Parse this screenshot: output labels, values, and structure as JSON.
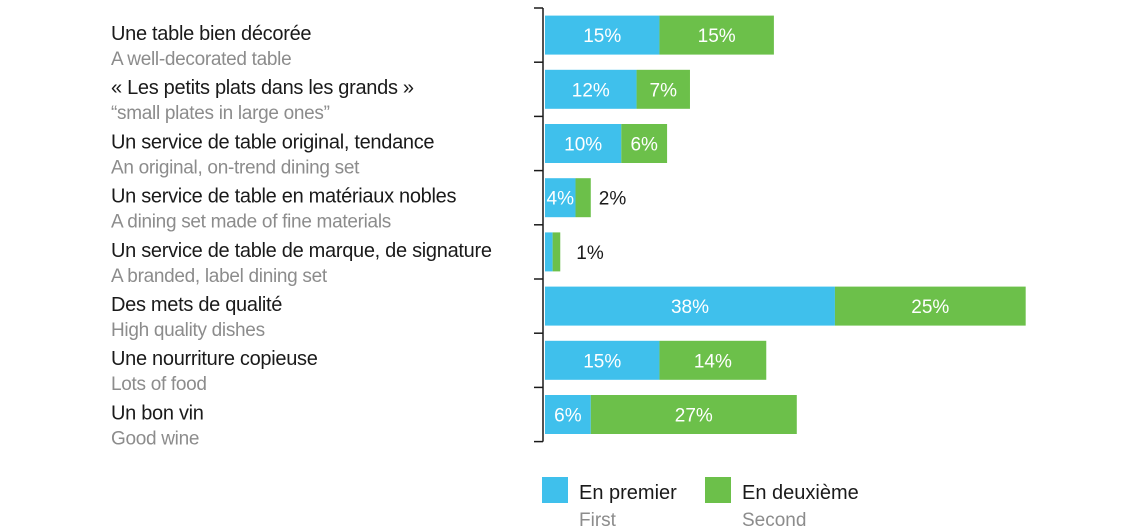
{
  "chart_data": {
    "type": "bar",
    "orientation": "horizontal",
    "stacked": true,
    "categories": [
      {
        "fr": "Une table bien décorée",
        "en": "A well-decorated table"
      },
      {
        "fr": "« Les petits plats dans les grands »",
        "en": "“small plates in large ones”"
      },
      {
        "fr": "Un service de table original, tendance",
        "en": "An original, on-trend dining set"
      },
      {
        "fr": "Un service de table en matériaux nobles",
        "en": "A dining set made of fine materials"
      },
      {
        "fr": "Un service de table de marque, de signature",
        "en": "A branded, label dining set"
      },
      {
        "fr": "Des mets de qualité",
        "en": "High quality dishes"
      },
      {
        "fr": "Une nourriture copieuse",
        "en": "Lots of food"
      },
      {
        "fr": "Un bon vin",
        "en": "Good wine"
      }
    ],
    "series": [
      {
        "name": "En premier",
        "name_en": "First",
        "color": "#3fc0ec",
        "values": [
          15,
          12,
          10,
          4,
          1,
          38,
          15,
          6
        ],
        "labels": [
          "15%",
          "12%",
          "10%",
          "4%",
          "",
          "38%",
          "15%",
          "6%"
        ]
      },
      {
        "name": "En deuxième",
        "name_en": "Second",
        "color": "#6cc04a",
        "values": [
          15,
          7,
          6,
          2,
          1,
          25,
          14,
          27
        ],
        "labels": [
          "15%",
          "7%",
          "6%",
          "2%",
          "",
          "25%",
          "14%",
          "27%"
        ]
      }
    ],
    "extra_labels": [
      "",
      "",
      "",
      "",
      "1%",
      "",
      "",
      ""
    ],
    "legend_position": "bottom",
    "grid": false
  }
}
